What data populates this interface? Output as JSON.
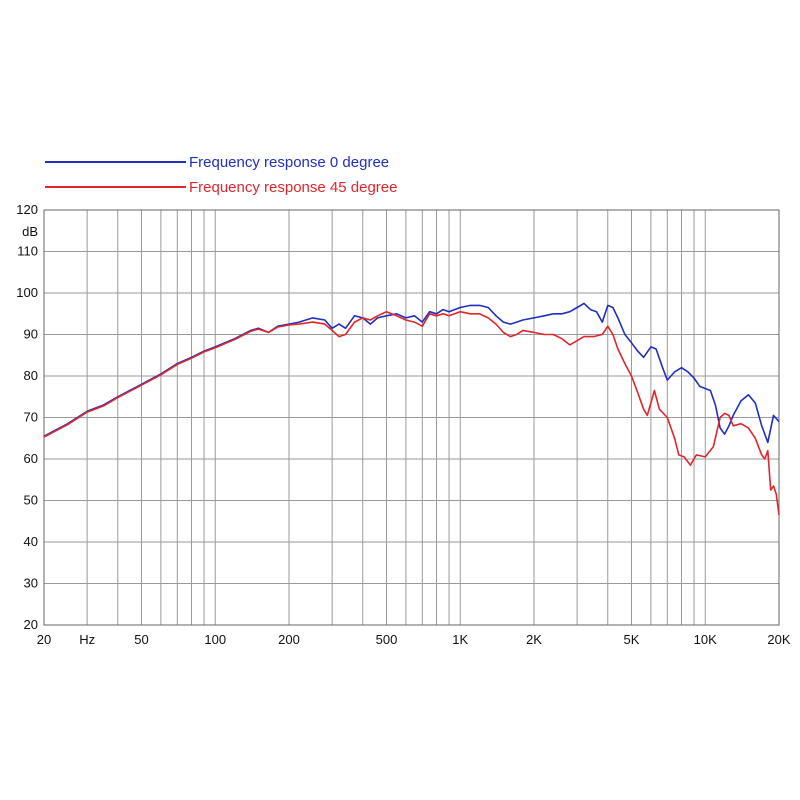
{
  "chart_data": {
    "type": "line",
    "title": "",
    "xlabel": "",
    "ylabel": "dB",
    "x_scale": "log",
    "xlim": [
      20,
      20000
    ],
    "ylim": [
      20,
      120
    ],
    "grid": true,
    "legend_position": "top-left",
    "x_tick_values": [
      20,
      30,
      50,
      100,
      200,
      500,
      1000,
      2000,
      5000,
      10000,
      20000
    ],
    "x_tick_labels": [
      "20",
      "Hz",
      "50",
      "100",
      "200",
      "500",
      "1K",
      "2K",
      "5K",
      "10K",
      "20K"
    ],
    "x_gridlines": [
      20,
      30,
      40,
      50,
      60,
      70,
      80,
      90,
      100,
      200,
      300,
      400,
      500,
      600,
      700,
      800,
      900,
      1000,
      2000,
      3000,
      4000,
      5000,
      6000,
      7000,
      8000,
      9000,
      10000,
      20000
    ],
    "y_ticks": [
      20,
      30,
      40,
      50,
      60,
      70,
      80,
      90,
      100,
      110,
      120
    ],
    "y_tick_labels": [
      "20",
      "30",
      "40",
      "50",
      "60",
      "70",
      "80",
      "90",
      "100",
      "110",
      "120"
    ],
    "series": [
      {
        "name": "Frequency response 0 degree",
        "color": "#1f2fbf",
        "points": [
          [
            20,
            65.5
          ],
          [
            25,
            68.5
          ],
          [
            30,
            71.5
          ],
          [
            35,
            73
          ],
          [
            40,
            75
          ],
          [
            50,
            78
          ],
          [
            60,
            80.5
          ],
          [
            70,
            83
          ],
          [
            80,
            84.5
          ],
          [
            90,
            86
          ],
          [
            100,
            87
          ],
          [
            120,
            89
          ],
          [
            140,
            91
          ],
          [
            150,
            91.5
          ],
          [
            165,
            90.5
          ],
          [
            180,
            92
          ],
          [
            200,
            92.5
          ],
          [
            220,
            93
          ],
          [
            250,
            94
          ],
          [
            280,
            93.5
          ],
          [
            300,
            91.5
          ],
          [
            320,
            92.5
          ],
          [
            340,
            91.5
          ],
          [
            370,
            94.5
          ],
          [
            400,
            94
          ],
          [
            430,
            92.5
          ],
          [
            460,
            94
          ],
          [
            500,
            94.5
          ],
          [
            550,
            95
          ],
          [
            600,
            94
          ],
          [
            650,
            94.5
          ],
          [
            700,
            93
          ],
          [
            750,
            95.5
          ],
          [
            800,
            95
          ],
          [
            850,
            96
          ],
          [
            900,
            95.5
          ],
          [
            1000,
            96.5
          ],
          [
            1100,
            97
          ],
          [
            1200,
            97
          ],
          [
            1300,
            96.5
          ],
          [
            1400,
            94.5
          ],
          [
            1500,
            93
          ],
          [
            1600,
            92.5
          ],
          [
            1700,
            93
          ],
          [
            1800,
            93.5
          ],
          [
            2000,
            94
          ],
          [
            2200,
            94.5
          ],
          [
            2400,
            95
          ],
          [
            2600,
            95
          ],
          [
            2800,
            95.5
          ],
          [
            3000,
            96.5
          ],
          [
            3200,
            97.5
          ],
          [
            3400,
            96
          ],
          [
            3600,
            95.5
          ],
          [
            3800,
            93
          ],
          [
            4000,
            97
          ],
          [
            4200,
            96.5
          ],
          [
            4400,
            94
          ],
          [
            4700,
            90
          ],
          [
            5000,
            88
          ],
          [
            5300,
            86
          ],
          [
            5600,
            84.5
          ],
          [
            6000,
            87
          ],
          [
            6300,
            86.5
          ],
          [
            6700,
            82
          ],
          [
            7000,
            79
          ],
          [
            7500,
            81
          ],
          [
            8000,
            82
          ],
          [
            8500,
            81
          ],
          [
            9000,
            79.5
          ],
          [
            9500,
            77.5
          ],
          [
            10000,
            77
          ],
          [
            10500,
            76.5
          ],
          [
            11000,
            73
          ],
          [
            11500,
            67.5
          ],
          [
            12000,
            66
          ],
          [
            12500,
            68
          ],
          [
            13000,
            70.5
          ],
          [
            14000,
            74
          ],
          [
            15000,
            75.5
          ],
          [
            16000,
            73.5
          ],
          [
            17000,
            68
          ],
          [
            18000,
            64
          ],
          [
            19000,
            70.5
          ],
          [
            20000,
            69
          ]
        ]
      },
      {
        "name": "Frequency response 45 degree",
        "color": "#e0262b",
        "points": [
          [
            20,
            65.3
          ],
          [
            25,
            68.3
          ],
          [
            30,
            71.3
          ],
          [
            35,
            72.8
          ],
          [
            40,
            74.8
          ],
          [
            50,
            77.8
          ],
          [
            60,
            80.3
          ],
          [
            70,
            82.8
          ],
          [
            80,
            84.3
          ],
          [
            90,
            85.8
          ],
          [
            100,
            86.8
          ],
          [
            120,
            88.8
          ],
          [
            140,
            90.8
          ],
          [
            150,
            91.3
          ],
          [
            165,
            90.5
          ],
          [
            180,
            91.8
          ],
          [
            200,
            92.3
          ],
          [
            220,
            92.5
          ],
          [
            250,
            93
          ],
          [
            280,
            92.5
          ],
          [
            300,
            91
          ],
          [
            320,
            89.5
          ],
          [
            340,
            90
          ],
          [
            370,
            93
          ],
          [
            400,
            94
          ],
          [
            430,
            93.5
          ],
          [
            460,
            94.5
          ],
          [
            500,
            95.5
          ],
          [
            550,
            94.5
          ],
          [
            600,
            93.5
          ],
          [
            650,
            93
          ],
          [
            700,
            92
          ],
          [
            750,
            95
          ],
          [
            800,
            94.5
          ],
          [
            850,
            95
          ],
          [
            900,
            94.5
          ],
          [
            1000,
            95.5
          ],
          [
            1100,
            95
          ],
          [
            1200,
            95
          ],
          [
            1300,
            94
          ],
          [
            1400,
            92.5
          ],
          [
            1500,
            90.5
          ],
          [
            1600,
            89.5
          ],
          [
            1700,
            90
          ],
          [
            1800,
            91
          ],
          [
            2000,
            90.5
          ],
          [
            2200,
            90
          ],
          [
            2400,
            90
          ],
          [
            2600,
            89
          ],
          [
            2800,
            87.5
          ],
          [
            3000,
            88.5
          ],
          [
            3200,
            89.5
          ],
          [
            3500,
            89.5
          ],
          [
            3800,
            90
          ],
          [
            4000,
            92
          ],
          [
            4200,
            90
          ],
          [
            4400,
            86.5
          ],
          [
            4700,
            83
          ],
          [
            5000,
            80
          ],
          [
            5300,
            76
          ],
          [
            5600,
            72
          ],
          [
            5800,
            70.5
          ],
          [
            6200,
            76.5
          ],
          [
            6500,
            72
          ],
          [
            7000,
            70
          ],
          [
            7500,
            65
          ],
          [
            7800,
            61
          ],
          [
            8200,
            60.5
          ],
          [
            8700,
            58.5
          ],
          [
            9200,
            61
          ],
          [
            10000,
            60.5
          ],
          [
            10800,
            63
          ],
          [
            11500,
            70
          ],
          [
            12000,
            71
          ],
          [
            12500,
            70.5
          ],
          [
            13000,
            68
          ],
          [
            14000,
            68.5
          ],
          [
            15000,
            67.5
          ],
          [
            16000,
            65
          ],
          [
            17000,
            61
          ],
          [
            17500,
            60
          ],
          [
            18000,
            62
          ],
          [
            18500,
            52.5
          ],
          [
            19000,
            53.5
          ],
          [
            19500,
            51.5
          ],
          [
            20000,
            46.5
          ]
        ]
      }
    ]
  }
}
